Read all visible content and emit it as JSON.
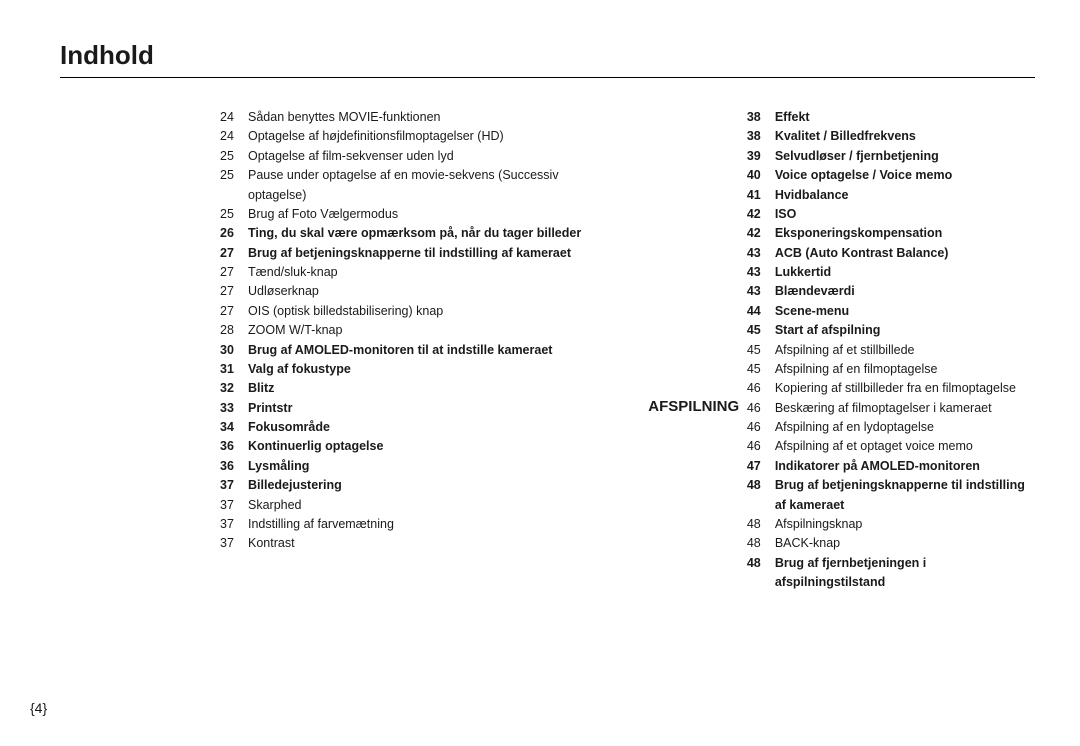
{
  "title": "Indhold",
  "page_number": "{4}",
  "section_label": "AFSPILNING",
  "col1": [
    {
      "pg": "24",
      "txt": "Sådan benyttes MOVIE-funktionen",
      "b": false
    },
    {
      "pg": "24",
      "txt": "Optagelse af højdefinitionsfilmoptagelser (HD)",
      "b": false
    },
    {
      "pg": "25",
      "txt": "Optagelse af film-sekvenser uden lyd",
      "b": false
    },
    {
      "pg": "25",
      "txt": "Pause under optagelse af en movie-sekvens (Successiv optagelse)",
      "b": false
    },
    {
      "pg": "25",
      "txt": "Brug af Foto Vælgermodus",
      "b": false
    },
    {
      "pg": "26",
      "txt": "Ting, du skal være opmærksom på, når du tager billeder",
      "b": true
    },
    {
      "pg": "27",
      "txt": "Brug af betjeningsknapperne til indstilling af kameraet",
      "b": true
    },
    {
      "pg": "27",
      "txt": "Tænd/sluk-knap",
      "b": false
    },
    {
      "pg": "27",
      "txt": "Udløserknap",
      "b": false
    },
    {
      "pg": "27",
      "txt": "OIS (optisk billedstabilisering) knap",
      "b": false
    },
    {
      "pg": "28",
      "txt": "ZOOM W/T-knap",
      "b": false
    },
    {
      "pg": "30",
      "txt": "Brug af AMOLED-monitoren til at indstille kameraet",
      "b": true
    },
    {
      "pg": "31",
      "txt": "Valg af fokustype",
      "b": true
    },
    {
      "pg": "32",
      "txt": "Blitz",
      "b": true
    },
    {
      "pg": "33",
      "txt": "Printstr",
      "b": true
    },
    {
      "pg": "34",
      "txt": "Fokusområde",
      "b": true
    },
    {
      "pg": "36",
      "txt": "Kontinuerlig optagelse",
      "b": true
    },
    {
      "pg": "36",
      "txt": "Lysmåling",
      "b": true
    },
    {
      "pg": "37",
      "txt": "Billedejustering",
      "b": true
    },
    {
      "pg": "37",
      "txt": "Skarphed",
      "b": false
    },
    {
      "pg": "37",
      "txt": "Indstilling af farvemætning",
      "b": false
    },
    {
      "pg": "37",
      "txt": "Kontrast",
      "b": false
    }
  ],
  "col2": [
    {
      "pg": "38",
      "txt": "Effekt",
      "b": true
    },
    {
      "pg": "38",
      "txt": "Kvalitet / Billedfrekvens",
      "b": true
    },
    {
      "pg": "39",
      "txt": "Selvudløser / fjernbetjening",
      "b": true
    },
    {
      "pg": "40",
      "txt": "Voice optagelse / Voice memo",
      "b": true
    },
    {
      "pg": "41",
      "txt": "Hvidbalance",
      "b": true
    },
    {
      "pg": "42",
      "txt": "ISO",
      "b": true
    },
    {
      "pg": "42",
      "txt": "Eksponeringskompensation",
      "b": true
    },
    {
      "pg": "43",
      "txt": "ACB (Auto Kontrast Balance)",
      "b": true
    },
    {
      "pg": "43",
      "txt": "Lukkertid",
      "b": true
    },
    {
      "pg": "43",
      "txt": "Blændeværdi",
      "b": true
    },
    {
      "pg": "44",
      "txt": "Scene-menu",
      "b": true
    },
    {
      "pg": "",
      "txt": " ",
      "b": false
    },
    {
      "pg": "45",
      "txt": "Start af afspilning",
      "b": true
    },
    {
      "pg": "45",
      "txt": "Afspilning af et stillbillede",
      "b": false
    },
    {
      "pg": "45",
      "txt": "Afspilning af en filmoptagelse",
      "b": false
    },
    {
      "pg": "46",
      "txt": "Kopiering af stillbilleder fra en filmoptagelse",
      "b": false
    },
    {
      "pg": "46",
      "txt": "Beskæring af filmoptagelser i kameraet",
      "b": false
    },
    {
      "pg": "46",
      "txt": "Afspilning af en lydoptagelse",
      "b": false
    },
    {
      "pg": "46",
      "txt": "Afspilning af et optaget voice memo",
      "b": false
    },
    {
      "pg": "47",
      "txt": "Indikatorer på AMOLED-monitoren",
      "b": true
    },
    {
      "pg": "48",
      "txt": "Brug af betjeningsknapperne til indstilling af kameraet",
      "b": true
    },
    {
      "pg": "48",
      "txt": "Afspilningsknap",
      "b": false
    },
    {
      "pg": "48",
      "txt": "BACK-knap",
      "b": false
    },
    {
      "pg": "48",
      "txt": "Brug af fjernbetjeningen i afspilningstilstand",
      "b": true
    }
  ]
}
